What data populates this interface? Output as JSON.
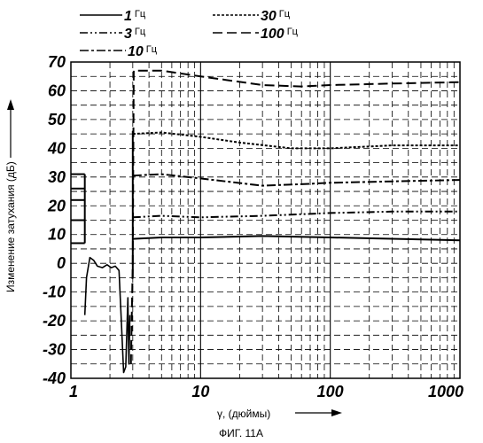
{
  "chart_data": {
    "type": "line",
    "x_scale": "log",
    "xlim": [
      1,
      1000
    ],
    "ylim": [
      -40,
      70
    ],
    "xlabel": "γ, (дюймы)",
    "ylabel": "Изменение затухания (дБ)",
    "caption": "ФИГ. 11А",
    "grid": true,
    "x_ticks": [
      {
        "value": 1,
        "label": "1"
      },
      {
        "value": 10,
        "label": "10"
      },
      {
        "value": 100,
        "label": "100"
      },
      {
        "value": 1000,
        "label": "1000"
      }
    ],
    "y_ticks": [
      {
        "value": 70,
        "label": "70"
      },
      {
        "value": 60,
        "label": "60"
      },
      {
        "value": 50,
        "label": "50"
      },
      {
        "value": 40,
        "label": "40"
      },
      {
        "value": 30,
        "label": "30"
      },
      {
        "value": 20,
        "label": "20"
      },
      {
        "value": 10,
        "label": "10"
      },
      {
        "value": 0,
        "label": "0"
      },
      {
        "value": -10,
        "label": "-10"
      },
      {
        "value": -20,
        "label": "-20"
      },
      {
        "value": -30,
        "label": "-30"
      },
      {
        "value": -40,
        "label": "-40"
      }
    ],
    "series": [
      {
        "name": "1 Гц",
        "value_label": "1",
        "unit": "Гц",
        "dash": "solid",
        "points": [
          [
            3,
            8.5
          ],
          [
            5,
            9
          ],
          [
            10,
            9
          ],
          [
            30,
            9.5
          ],
          [
            100,
            9
          ],
          [
            1000,
            8
          ]
        ]
      },
      {
        "name": "3 Гц",
        "value_label": "3",
        "unit": "Гц",
        "dash": "dashdotdot",
        "points": [
          [
            3,
            16
          ],
          [
            5,
            16.5
          ],
          [
            10,
            16
          ],
          [
            30,
            16.5
          ],
          [
            100,
            17.5
          ],
          [
            300,
            18
          ],
          [
            1000,
            18
          ]
        ]
      },
      {
        "name": "10 Гц",
        "value_label": "10",
        "unit": "Гц",
        "dash": "dashdot",
        "points": [
          [
            3,
            30.5
          ],
          [
            5,
            31
          ],
          [
            10,
            29.5
          ],
          [
            30,
            27
          ],
          [
            60,
            27.5
          ],
          [
            100,
            28
          ],
          [
            300,
            28.5
          ],
          [
            1000,
            29
          ]
        ]
      },
      {
        "name": "30 Гц",
        "value_label": "30",
        "unit": "Гц",
        "dash": "fine",
        "points": [
          [
            3,
            45
          ],
          [
            5,
            45.5
          ],
          [
            10,
            44
          ],
          [
            20,
            42
          ],
          [
            50,
            40
          ],
          [
            100,
            40
          ],
          [
            300,
            41
          ],
          [
            1000,
            41
          ]
        ]
      },
      {
        "name": "100 Гц",
        "value_label": "100",
        "unit": "Гц",
        "dash": "longdash",
        "points": [
          [
            2.9,
            -35
          ],
          [
            3.0,
            0
          ],
          [
            3.05,
            67
          ],
          [
            5,
            67
          ],
          [
            10,
            65
          ],
          [
            30,
            62
          ],
          [
            60,
            61.5
          ],
          [
            100,
            62
          ],
          [
            300,
            62.5
          ],
          [
            1000,
            63
          ]
        ]
      }
    ],
    "low_region_trace": {
      "points": [
        [
          1.28,
          -18
        ],
        [
          1.32,
          -5
        ],
        [
          1.4,
          2
        ],
        [
          1.5,
          1
        ],
        [
          1.6,
          -1
        ],
        [
          1.75,
          -1.5
        ],
        [
          1.9,
          -0.5
        ],
        [
          2.05,
          -1.5
        ],
        [
          2.2,
          -1
        ],
        [
          2.35,
          -2.5
        ],
        [
          2.45,
          -20
        ],
        [
          2.55,
          -38
        ],
        [
          2.65,
          -36
        ],
        [
          2.75,
          -12
        ],
        [
          2.8,
          -35
        ],
        [
          2.85,
          -18
        ]
      ]
    },
    "left_stubs": [
      {
        "y": 31,
        "x_end": 1.28
      },
      {
        "y": 26,
        "x_end": 1.28
      },
      {
        "y": 22,
        "x_end": 1.28
      },
      {
        "y": 15,
        "x_end": 1.28
      },
      {
        "y": 7,
        "x_end": 1.28
      }
    ]
  }
}
